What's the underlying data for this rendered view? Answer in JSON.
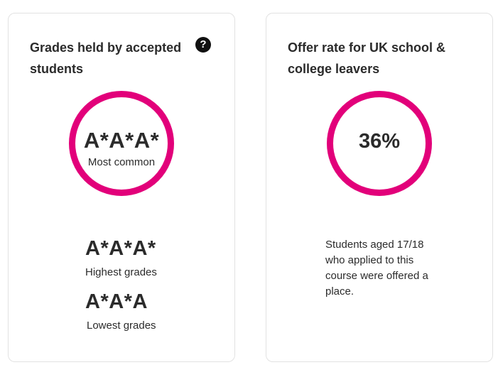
{
  "grades_card": {
    "title": "Grades held by accepted students",
    "help_symbol": "?",
    "most_common": {
      "value": "A*A*A*",
      "label": "Most common"
    },
    "highest": {
      "value": "A*A*A*",
      "label": "Highest grades"
    },
    "lowest": {
      "value": "A*A*A",
      "label": "Lowest grades"
    }
  },
  "offer_card": {
    "title": "Offer rate for UK school & college leavers",
    "rate": "36%",
    "description": "Students aged 17/18 who applied to this course were offered a place."
  },
  "colors": {
    "ring": "#e2007a",
    "text": "#2b2b2b",
    "card_border": "#e2e2e2"
  },
  "icons": {
    "help": "question-circle-icon"
  }
}
